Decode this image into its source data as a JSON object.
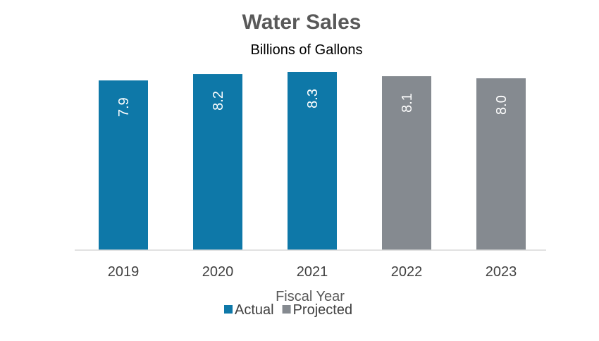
{
  "chart_data": {
    "type": "bar",
    "title": "Water Sales",
    "subtitle": "Billions of Gallons",
    "xlabel": "Fiscal Year",
    "ylabel": "",
    "categories": [
      "2019",
      "2020",
      "2021",
      "2022",
      "2023"
    ],
    "values": [
      7.9,
      8.2,
      8.3,
      8.1,
      8.0
    ],
    "data_labels": [
      "7.9",
      "8.2",
      "8.3",
      "8.1",
      "8.0"
    ],
    "bar_series": [
      "Actual",
      "Actual",
      "Actual",
      "Projected",
      "Projected"
    ],
    "series": [
      {
        "name": "Actual",
        "color": "#0E78A8"
      },
      {
        "name": "Projected",
        "color": "#858A90"
      }
    ],
    "ylim": [
      0,
      8.3
    ],
    "grid": false,
    "legend": "bottom",
    "data_label_orientation": "rotated-vertical"
  }
}
